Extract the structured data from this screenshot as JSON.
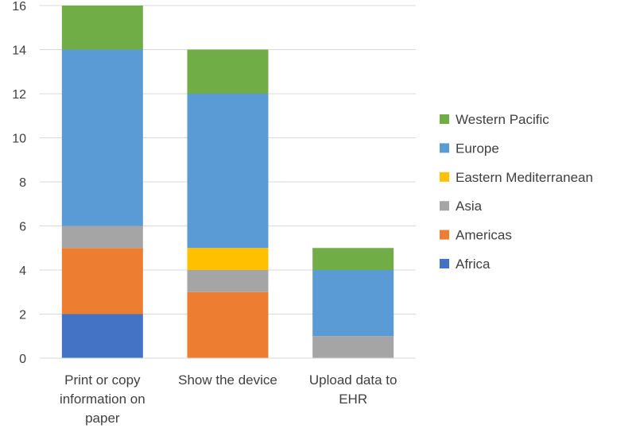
{
  "chart_data": {
    "type": "bar",
    "stacked": true,
    "categories": [
      [
        "Print or copy",
        "information on",
        "paper"
      ],
      [
        "Show the device"
      ],
      [
        "Upload data to",
        "EHR"
      ]
    ],
    "series": [
      {
        "name": "Africa",
        "color": "#4472c4",
        "values": [
          2,
          0,
          0
        ]
      },
      {
        "name": "Americas",
        "color": "#ed7d31",
        "values": [
          3,
          3,
          0
        ]
      },
      {
        "name": "Asia",
        "color": "#a5a5a5",
        "values": [
          1,
          1,
          1
        ]
      },
      {
        "name": "Eastern Mediterranean",
        "color": "#ffc000",
        "values": [
          0,
          1,
          0
        ]
      },
      {
        "name": "Europe",
        "color": "#5b9bd5",
        "values": [
          8,
          7,
          3
        ]
      },
      {
        "name": "Western Pacific",
        "color": "#70ad47",
        "values": [
          2,
          2,
          1
        ]
      }
    ],
    "ylim": [
      0,
      16
    ],
    "yticks": [
      0,
      2,
      4,
      6,
      8,
      10,
      12,
      14,
      16
    ],
    "grid": true,
    "legend_position": "right",
    "legend_order": "reversed"
  }
}
